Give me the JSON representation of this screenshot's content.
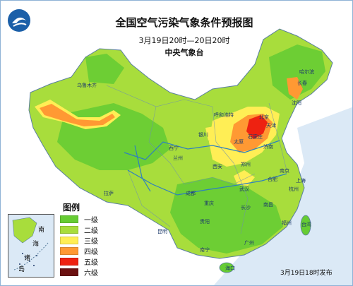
{
  "title": "全国空气污染气象条件预报图",
  "subtitle": "3月19日20时—20日20时",
  "agency": "中央气象台",
  "footer": "3月19日18时发布",
  "legend": {
    "title": "图例",
    "items": [
      {
        "label": "一级",
        "color": "#66cc33"
      },
      {
        "label": "二级",
        "color": "#a8dd3c"
      },
      {
        "label": "三级",
        "color": "#ffee55"
      },
      {
        "label": "四级",
        "color": "#ff9933"
      },
      {
        "label": "五级",
        "color": "#ee2211"
      },
      {
        "label": "六级",
        "color": "#6b1010"
      }
    ]
  },
  "inset": {
    "labels": [
      "南",
      "海",
      "诸",
      "岛"
    ]
  },
  "cities": [
    "乌鲁木齐",
    "哈尔滨",
    "长春",
    "沈阳",
    "呼和浩特",
    "北京",
    "天津",
    "石家庄",
    "太原",
    "银川",
    "西宁",
    "兰州",
    "济南",
    "郑州",
    "西安",
    "合肥",
    "南京",
    "上海",
    "武汉",
    "成都",
    "重庆",
    "长沙",
    "南昌",
    "福州",
    "贵阳",
    "昆明",
    "南宁",
    "广州",
    "海口",
    "拉萨",
    "杭州"
  ],
  "regions": [
    "台湾"
  ],
  "colors": {
    "sea": "#dbe9f6",
    "neighbor": "#ffffff",
    "border": "#5a7f9e",
    "river": "#2d7fc1"
  }
}
